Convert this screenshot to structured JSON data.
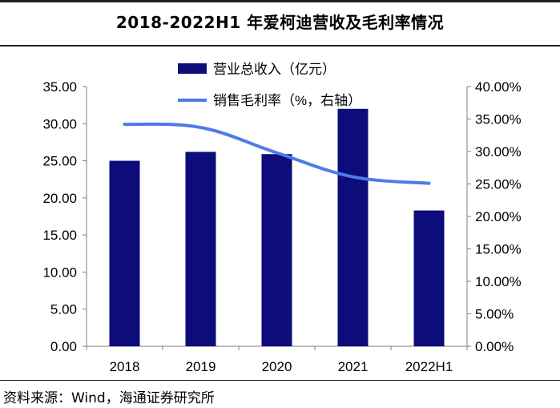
{
  "title": "2018-2022H1 年爱柯迪营收及毛利率情况",
  "source": "资料来源：Wind，海通证券研究所",
  "chart_data": {
    "type": "bar",
    "categories": [
      "2018",
      "2019",
      "2020",
      "2021",
      "2022H1"
    ],
    "series": [
      {
        "name": "营业总收入（亿元）",
        "type": "bar",
        "axis": "left",
        "values": [
          25.0,
          26.2,
          25.9,
          32.0,
          18.3
        ],
        "color": "#0c0c7a"
      },
      {
        "name": "销售毛利率（%，右轴）",
        "type": "line",
        "axis": "right",
        "values": [
          34.2,
          33.7,
          29.8,
          26.1,
          25.1
        ],
        "color": "#4f7bea"
      }
    ],
    "left_axis": {
      "min": 0,
      "max": 35,
      "step": 5,
      "tick_labels": [
        "0.00",
        "5.00",
        "10.00",
        "15.00",
        "20.00",
        "25.00",
        "30.00",
        "35.00"
      ]
    },
    "right_axis": {
      "min": 0,
      "max": 40,
      "step": 5,
      "tick_labels": [
        "0.00%",
        "5.00%",
        "10.00%",
        "15.00%",
        "20.00%",
        "25.00%",
        "30.00%",
        "35.00%",
        "40.00%"
      ]
    },
    "legend_position": "top-center",
    "grid": false
  }
}
